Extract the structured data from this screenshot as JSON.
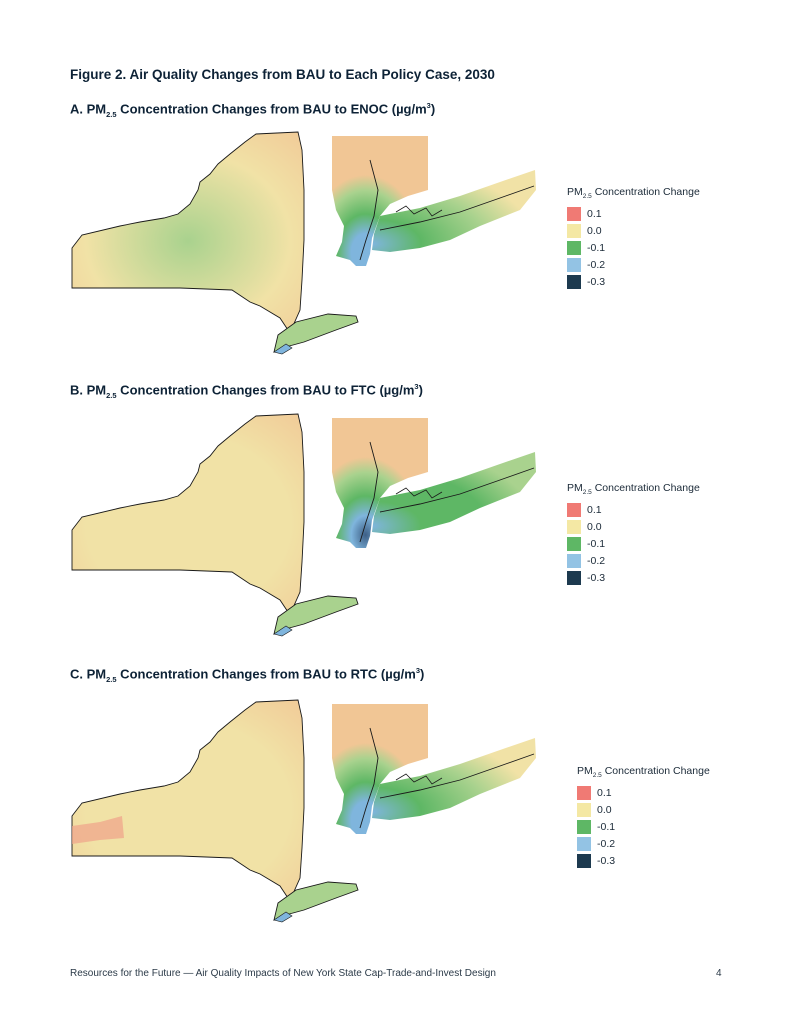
{
  "figure_title": "Figure 2. Air Quality Changes from BAU to Each Policy Case, 2030",
  "panels": [
    {
      "prefix": "A. PM",
      "sub": "2.5",
      "mid": " Concentration Changes from BAU to ENOC (µg/m",
      "sup": "3",
      "end": ")"
    },
    {
      "prefix": "B. PM",
      "sub": "2.5",
      "mid": " Concentration Changes from BAU to FTC (µg/m",
      "sup": "3",
      "end": ")"
    },
    {
      "prefix": "C. PM",
      "sub": "2.5",
      "mid": " Concentration Changes from BAU to RTC (µg/m",
      "sup": "3",
      "end": ")"
    }
  ],
  "legend": {
    "title_pre": "PM",
    "title_sub": "2.5",
    "title_post": " Concentration Change",
    "items": [
      {
        "label": "0.1",
        "color": "#f07a74"
      },
      {
        "label": "0.0",
        "color": "#f4e8a4"
      },
      {
        "label": "-0.1",
        "color": "#5eb765"
      },
      {
        "label": "-0.2",
        "color": "#93c3e4"
      },
      {
        "label": "-0.3",
        "color": "#1d3a4f"
      }
    ]
  },
  "map_colors": {
    "state_fill": "#f1e2a6",
    "warm": "#f1c695",
    "green": "#a9d28e",
    "deep_green": "#5eb765",
    "blue": "#7fb5dd",
    "dark": "#3d5f86",
    "outline": "#1a1a1a"
  },
  "footer": "Resources for the Future — Air Quality Impacts of New York State Cap-Trade-and-Invest Design",
  "page_number": "4"
}
